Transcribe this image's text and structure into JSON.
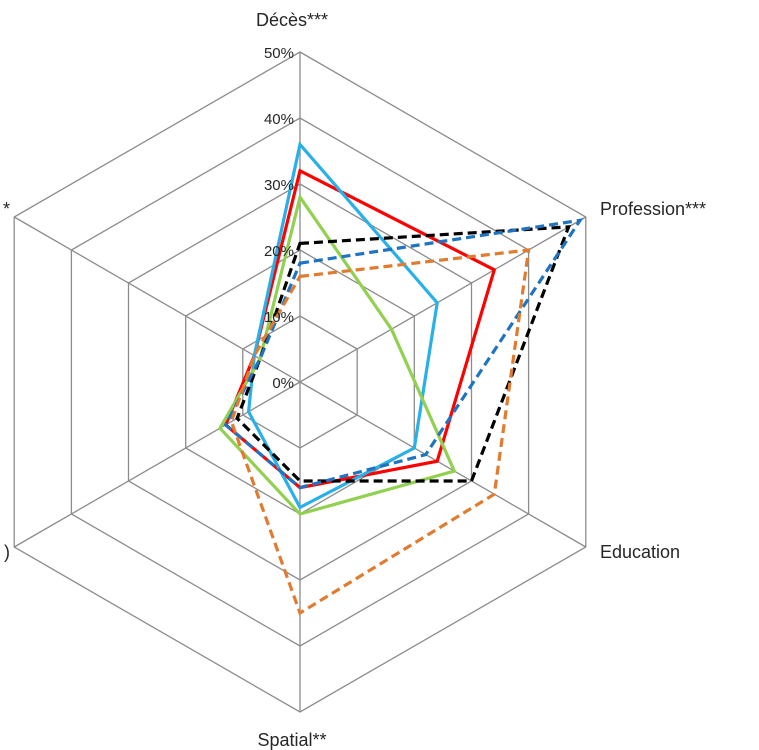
{
  "chart_data": {
    "type": "radar",
    "axes": [
      "Décès***",
      "Profession***",
      "Education",
      "Spatial**",
      ")",
      "*"
    ],
    "ticks": [
      "0%",
      "10%",
      "20%",
      "30%",
      "40%",
      "50%"
    ],
    "range": [
      0,
      0.5
    ],
    "grid": true,
    "series": [
      {
        "color": "#ff0000",
        "dash": "solid",
        "values": [
          0.32,
          0.34,
          0.24,
          0.16,
          0.13,
          0.08
        ]
      },
      {
        "color": "#2ab0e8",
        "dash": "solid",
        "values": [
          0.36,
          0.24,
          0.2,
          0.19,
          0.09,
          0.08
        ]
      },
      {
        "color": "#92d050",
        "dash": "solid",
        "values": [
          0.28,
          0.16,
          0.27,
          0.2,
          0.14,
          0.07
        ]
      },
      {
        "color": "#000000",
        "dash": "dashed",
        "values": [
          0.21,
          0.47,
          0.3,
          0.15,
          0.11,
          0.07
        ]
      },
      {
        "color": "#1f74c1",
        "dash": "dashed",
        "values": [
          0.18,
          0.49,
          0.22,
          0.16,
          0.13,
          0.07
        ]
      },
      {
        "color": "#e07b30",
        "dash": "dashed",
        "values": [
          0.16,
          0.4,
          0.34,
          0.35,
          0.12,
          0.08
        ]
      }
    ]
  }
}
